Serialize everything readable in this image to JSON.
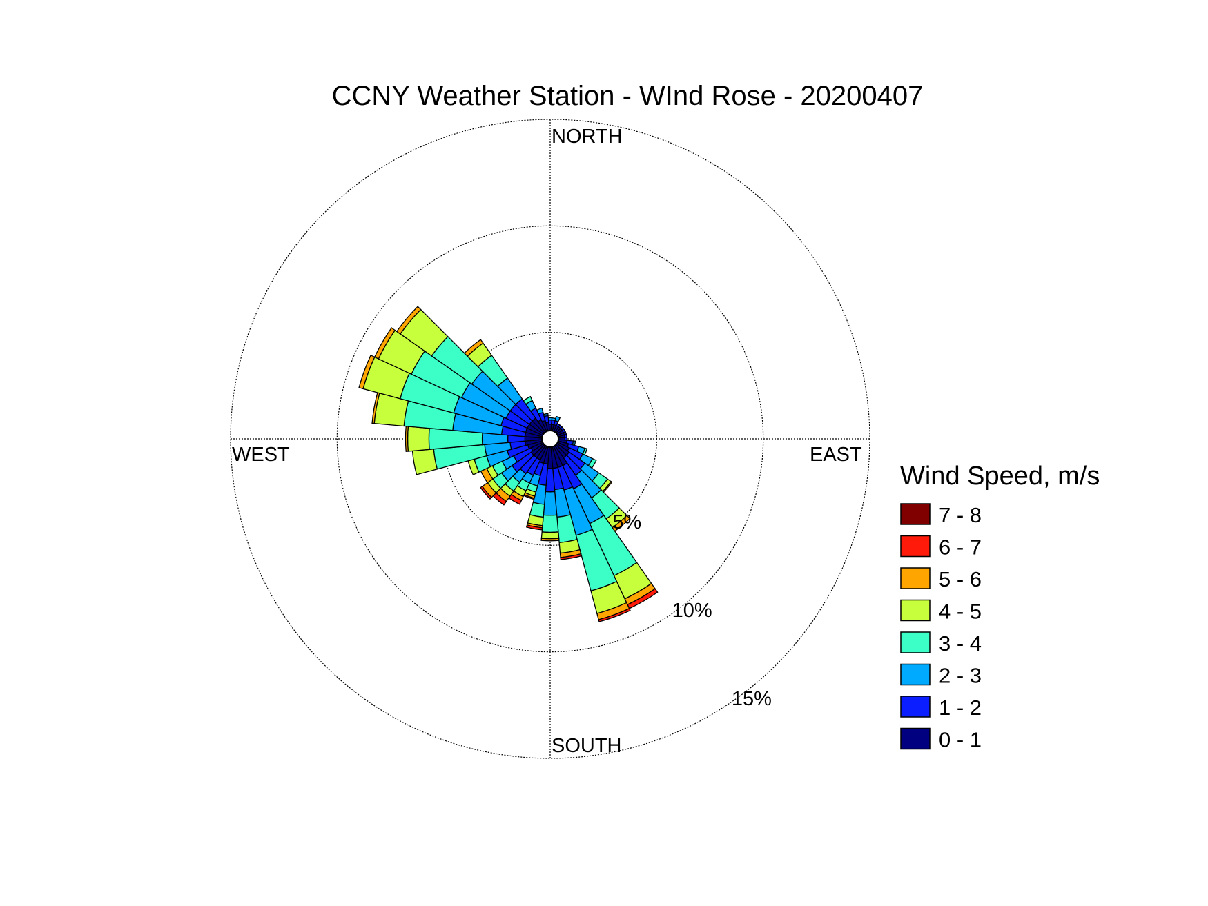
{
  "chart_data": {
    "type": "wind-rose",
    "title": "CCNY Weather Station - WInd Rose - 20200407",
    "directions": [
      "NORTH",
      "EAST",
      "SOUTH",
      "WEST"
    ],
    "radial_unit": "%",
    "radial_ticks": [
      {
        "value": 5,
        "label": "5%"
      },
      {
        "value": 10,
        "label": "10%"
      },
      {
        "value": 15,
        "label": "15%"
      }
    ],
    "rmax": 15,
    "legend": {
      "title": "Wind Speed, m/s",
      "placement": "right",
      "bins": [
        {
          "label": "7 - 8",
          "color": "#800000"
        },
        {
          "label": "6 - 7",
          "color": "#ff1a0a"
        },
        {
          "label": "5 - 6",
          "color": "#ffa500"
        },
        {
          "label": "4 - 5",
          "color": "#c8ff3c"
        },
        {
          "label": "3 - 4",
          "color": "#3cffc8"
        },
        {
          "label": "2 - 3",
          "color": "#00aaff"
        },
        {
          "label": "1 - 2",
          "color": "#0a1eff"
        },
        {
          "label": "0 - 1",
          "color": "#000080"
        }
      ]
    },
    "speed_bins": [
      "0 - 1",
      "1 - 2",
      "2 - 3",
      "3 - 4",
      "4 - 5",
      "5 - 6",
      "6 - 7",
      "7 - 8"
    ],
    "sector_width_deg": 10,
    "sectors": [
      {
        "dir": 0,
        "freq": [
          0.3,
          0.2,
          0.1,
          0,
          0,
          0,
          0,
          0
        ]
      },
      {
        "dir": 10,
        "freq": [
          0.3,
          0.2,
          0.1,
          0,
          0,
          0,
          0,
          0
        ]
      },
      {
        "dir": 20,
        "freq": [
          0.3,
          0.2,
          0.2,
          0,
          0,
          0,
          0,
          0
        ]
      },
      {
        "dir": 30,
        "freq": [
          0.3,
          0.1,
          0,
          0,
          0,
          0,
          0,
          0
        ]
      },
      {
        "dir": 40,
        "freq": [
          0.3,
          0.1,
          0,
          0,
          0,
          0,
          0,
          0
        ]
      },
      {
        "dir": 50,
        "freq": [
          0.3,
          0.1,
          0,
          0,
          0,
          0,
          0,
          0
        ]
      },
      {
        "dir": 60,
        "freq": [
          0.3,
          0.1,
          0,
          0,
          0,
          0,
          0,
          0
        ]
      },
      {
        "dir": 70,
        "freq": [
          0.3,
          0.1,
          0,
          0,
          0,
          0,
          0,
          0
        ]
      },
      {
        "dir": 80,
        "freq": [
          0.3,
          0.1,
          0,
          0,
          0,
          0,
          0,
          0
        ]
      },
      {
        "dir": 90,
        "freq": [
          0.3,
          0.1,
          0,
          0,
          0,
          0,
          0,
          0
        ]
      },
      {
        "dir": 100,
        "freq": [
          0.4,
          0.3,
          0.1,
          0,
          0,
          0,
          0,
          0
        ]
      },
      {
        "dir": 110,
        "freq": [
          0.5,
          0.5,
          0.3,
          0.1,
          0,
          0,
          0,
          0
        ]
      },
      {
        "dir": 120,
        "freq": [
          0.6,
          0.7,
          0.5,
          0.2,
          0,
          0,
          0,
          0
        ]
      },
      {
        "dir": 130,
        "freq": [
          0.7,
          0.9,
          0.8,
          0.5,
          0.2,
          0.05,
          0,
          0
        ]
      },
      {
        "dir": 140,
        "freq": [
          0.7,
          1.0,
          1.3,
          1.2,
          0.5,
          0.2,
          0,
          0
        ]
      },
      {
        "dir": 150,
        "freq": [
          1.0,
          1.2,
          1.8,
          2.7,
          1.2,
          0.3,
          0.2,
          0
        ]
      },
      {
        "dir": 160,
        "freq": [
          1.0,
          1.1,
          2.2,
          2.7,
          1.1,
          0.3,
          0.1,
          0
        ]
      },
      {
        "dir": 170,
        "freq": [
          1.0,
          1.0,
          1.3,
          1.2,
          0.5,
          0.2,
          0.1,
          0
        ]
      },
      {
        "dir": 180,
        "freq": [
          1.0,
          1.1,
          1.1,
          0.8,
          0.3,
          0.1,
          0,
          0
        ]
      },
      {
        "dir": 190,
        "freq": [
          0.8,
          1.0,
          0.9,
          0.6,
          0.4,
          0.1,
          0.1,
          0
        ]
      },
      {
        "dir": 200,
        "freq": [
          0.8,
          0.6,
          0.5,
          0.3,
          0.2,
          0.1,
          0.05,
          0
        ]
      },
      {
        "dir": 210,
        "freq": [
          0.7,
          0.8,
          0.4,
          0.4,
          0.3,
          0.2,
          0.2,
          0
        ]
      },
      {
        "dir": 220,
        "freq": [
          0.7,
          0.9,
          0.5,
          0.5,
          0.3,
          0.3,
          0.2,
          0
        ]
      },
      {
        "dir": 230,
        "freq": [
          0.7,
          1.1,
          0.6,
          0.5,
          0.3,
          0.3,
          0.1,
          0
        ]
      },
      {
        "dir": 240,
        "freq": [
          0.6,
          0.9,
          0.6,
          0.5,
          0.3,
          0.3,
          0,
          0
        ]
      },
      {
        "dir": 250,
        "freq": [
          0.7,
          1.0,
          1.0,
          0.6,
          0.3,
          0,
          0,
          0
        ]
      },
      {
        "dir": 260,
        "freq": [
          0.8,
          0.7,
          1.2,
          2.4,
          1.0,
          0,
          0,
          0
        ]
      },
      {
        "dir": 270,
        "freq": [
          0.8,
          0.8,
          1.2,
          2.5,
          1.0,
          0.1,
          0,
          0
        ]
      },
      {
        "dir": 280,
        "freq": [
          0.8,
          1.1,
          2.3,
          2.3,
          1.4,
          0.1,
          0,
          0
        ]
      },
      {
        "dir": 290,
        "freq": [
          0.8,
          1.2,
          2.3,
          2.6,
          1.8,
          0.2,
          0,
          0
        ]
      },
      {
        "dir": 300,
        "freq": [
          0.8,
          1.1,
          2.3,
          2.6,
          1.7,
          0.2,
          0,
          0
        ]
      },
      {
        "dir": 310,
        "freq": [
          0.8,
          1.1,
          2.2,
          2.3,
          1.8,
          0.2,
          0,
          0
        ]
      },
      {
        "dir": 320,
        "freq": [
          0.8,
          1.1,
          1.2,
          1.3,
          0.7,
          0.2,
          0,
          0
        ]
      },
      {
        "dir": 330,
        "freq": [
          0.6,
          0.6,
          0.4,
          0.2,
          0,
          0,
          0,
          0
        ]
      },
      {
        "dir": 340,
        "freq": [
          0.5,
          0.4,
          0.2,
          0,
          0,
          0,
          0,
          0
        ]
      },
      {
        "dir": 350,
        "freq": [
          0.4,
          0.3,
          0.1,
          0,
          0,
          0,
          0,
          0
        ]
      }
    ]
  }
}
